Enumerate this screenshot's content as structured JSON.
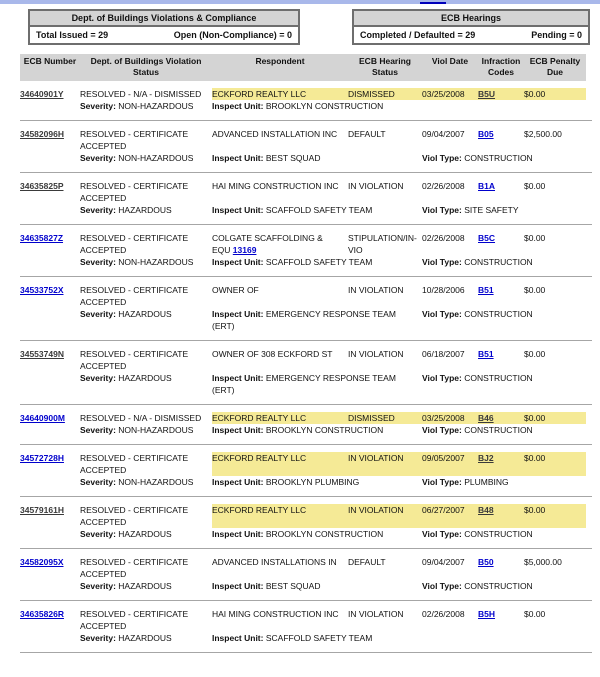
{
  "colors": {
    "highlight": "#F5EA96",
    "link_blue": "#0000CC",
    "link_visited_dark": "#3A3A3A",
    "header_bg": "#D4D4D4",
    "top_strip": "#A9B8EA",
    "top_strip_link": "#0000BB",
    "separator": "#A6A6A6"
  },
  "summary_boxes": {
    "eq": "=",
    "dob": {
      "title": "Dept. of Buildings Violations & Compliance",
      "stats": [
        {
          "label": "Total Issued",
          "value": "29"
        },
        {
          "label": "Open (Non-Compliance)",
          "value": "0"
        }
      ]
    },
    "ecb": {
      "title": "ECB Hearings",
      "stats": [
        {
          "label": "Completed / Defaulted",
          "value": "29"
        },
        {
          "label": "Pending",
          "value": "0"
        }
      ]
    }
  },
  "table": {
    "headers": [
      "ECB Number",
      "Dept. of Buildings Violation Status",
      "Respondent",
      "ECB Hearing Status",
      "Viol Date",
      "Infraction Codes",
      "ECB Penalty Due"
    ],
    "labels": {
      "severity_label": "Severity:",
      "inspect_unit_label": "Inspect Unit:",
      "viol_type_label": "Viol Type:"
    },
    "rows": [
      {
        "ecb_number": "34640901Y",
        "ecb_visited": true,
        "dob_status": "RESOLVED - N/A - DISMISSED",
        "severity": "NON-HAZARDOUS",
        "respondent": "ECKFORD REALTY LLC",
        "respondent_link": "",
        "inspect_unit": "BROOKLYN CONSTRUCTION",
        "hearing_status": "DISMISSED",
        "viol_date": "03/25/2008",
        "infraction_code": "B5U",
        "code_visited": true,
        "penalty": "$0.00",
        "viol_type": "",
        "highlighted": true
      },
      {
        "ecb_number": "34582096H",
        "ecb_visited": true,
        "dob_status": "RESOLVED - CERTIFICATE ACCEPTED",
        "severity": "NON-HAZARDOUS",
        "respondent": "ADVANCED INSTALLATION INC",
        "respondent_link": "",
        "inspect_unit": "BEST SQUAD",
        "hearing_status": "DEFAULT",
        "viol_date": "09/04/2007",
        "infraction_code": "B05",
        "code_visited": false,
        "penalty": "$2,500.00",
        "viol_type": "CONSTRUCTION",
        "highlighted": false
      },
      {
        "ecb_number": "34635825P",
        "ecb_visited": true,
        "dob_status": "RESOLVED - CERTIFICATE ACCEPTED",
        "severity": "HAZARDOUS",
        "respondent": "HAI MING CONSTRUCTION INC",
        "respondent_link": "",
        "inspect_unit": "SCAFFOLD SAFETY TEAM",
        "hearing_status": "IN VIOLATION",
        "viol_date": "02/26/2008",
        "infraction_code": "B1A",
        "code_visited": false,
        "penalty": "$0.00",
        "viol_type": "SITE SAFETY",
        "highlighted": false
      },
      {
        "ecb_number": "34635827Z",
        "ecb_visited": false,
        "dob_status": "RESOLVED - CERTIFICATE ACCEPTED",
        "severity": "NON-HAZARDOUS",
        "respondent": "COLGATE SCAFFOLDING & EQU",
        "respondent_link": "13169",
        "inspect_unit": "SCAFFOLD SAFETY TEAM",
        "hearing_status": "STIPULATION/IN-VIO",
        "viol_date": "02/26/2008",
        "infraction_code": "B5C",
        "code_visited": false,
        "penalty": "$0.00",
        "viol_type": "CONSTRUCTION",
        "highlighted": false
      },
      {
        "ecb_number": "34533752X",
        "ecb_visited": false,
        "dob_status": "RESOLVED - CERTIFICATE ACCEPTED",
        "severity": "HAZARDOUS",
        "respondent": "OWNER OF",
        "respondent_link": "",
        "inspect_unit": "EMERGENCY RESPONSE TEAM (ERT)",
        "hearing_status": "IN VIOLATION",
        "viol_date": "10/28/2006",
        "infraction_code": "B51",
        "code_visited": false,
        "penalty": "$0.00",
        "viol_type": "CONSTRUCTION",
        "highlighted": false
      },
      {
        "ecb_number": "34553749N",
        "ecb_visited": true,
        "dob_status": "RESOLVED - CERTIFICATE ACCEPTED",
        "severity": "HAZARDOUS",
        "respondent": "OWNER OF 308 ECKFORD ST",
        "respondent_link": "",
        "inspect_unit": "EMERGENCY RESPONSE TEAM (ERT)",
        "hearing_status": "IN VIOLATION",
        "viol_date": "06/18/2007",
        "infraction_code": "B51",
        "code_visited": false,
        "penalty": "$0.00",
        "viol_type": "CONSTRUCTION",
        "highlighted": false
      },
      {
        "ecb_number": "34640900M",
        "ecb_visited": false,
        "dob_status": "RESOLVED - N/A - DISMISSED",
        "severity": "NON-HAZARDOUS",
        "respondent": "ECKFORD REALTY LLC",
        "respondent_link": "",
        "inspect_unit": "BROOKLYN CONSTRUCTION",
        "hearing_status": "DISMISSED",
        "viol_date": "03/25/2008",
        "infraction_code": "B46",
        "code_visited": true,
        "penalty": "$0.00",
        "viol_type": "CONSTRUCTION",
        "highlighted": true
      },
      {
        "ecb_number": "34572728H",
        "ecb_visited": false,
        "dob_status": "RESOLVED - CERTIFICATE ACCEPTED",
        "severity": "NON-HAZARDOUS",
        "respondent": "ECKFORD REALTY LLC",
        "respondent_link": "",
        "inspect_unit": "BROOKLYN PLUMBING",
        "hearing_status": "IN VIOLATION",
        "viol_date": "09/05/2007",
        "infraction_code": "BJ2",
        "code_visited": true,
        "penalty": "$0.00",
        "viol_type": "PLUMBING",
        "highlighted": true
      },
      {
        "ecb_number": "34579161H",
        "ecb_visited": true,
        "dob_status": "RESOLVED - CERTIFICATE ACCEPTED",
        "severity": "HAZARDOUS",
        "respondent": "ECKFORD REALTY LLC",
        "respondent_link": "",
        "inspect_unit": "BROOKLYN CONSTRUCTION",
        "hearing_status": "IN VIOLATION",
        "viol_date": "06/27/2007",
        "infraction_code": "B48",
        "code_visited": true,
        "penalty": "$0.00",
        "viol_type": "CONSTRUCTION",
        "highlighted": true
      },
      {
        "ecb_number": "34582095X",
        "ecb_visited": false,
        "dob_status": "RESOLVED - CERTIFICATE ACCEPTED",
        "severity": "HAZARDOUS",
        "respondent": "ADVANCED INSTALLATIONS IN",
        "respondent_link": "",
        "inspect_unit": "BEST SQUAD",
        "hearing_status": "DEFAULT",
        "viol_date": "09/04/2007",
        "infraction_code": "B50",
        "code_visited": false,
        "penalty": "$5,000.00",
        "viol_type": "CONSTRUCTION",
        "highlighted": false
      },
      {
        "ecb_number": "34635826R",
        "ecb_visited": false,
        "dob_status": "RESOLVED - CERTIFICATE ACCEPTED",
        "severity": "HAZARDOUS",
        "respondent": "HAI MING CONSTRUCTION INC",
        "respondent_link": "",
        "inspect_unit": "SCAFFOLD SAFETY TEAM",
        "hearing_status": "IN VIOLATION",
        "viol_date": "02/26/2008",
        "infraction_code": "B5H",
        "code_visited": false,
        "penalty": "$0.00",
        "viol_type": "",
        "highlighted": false
      }
    ]
  }
}
